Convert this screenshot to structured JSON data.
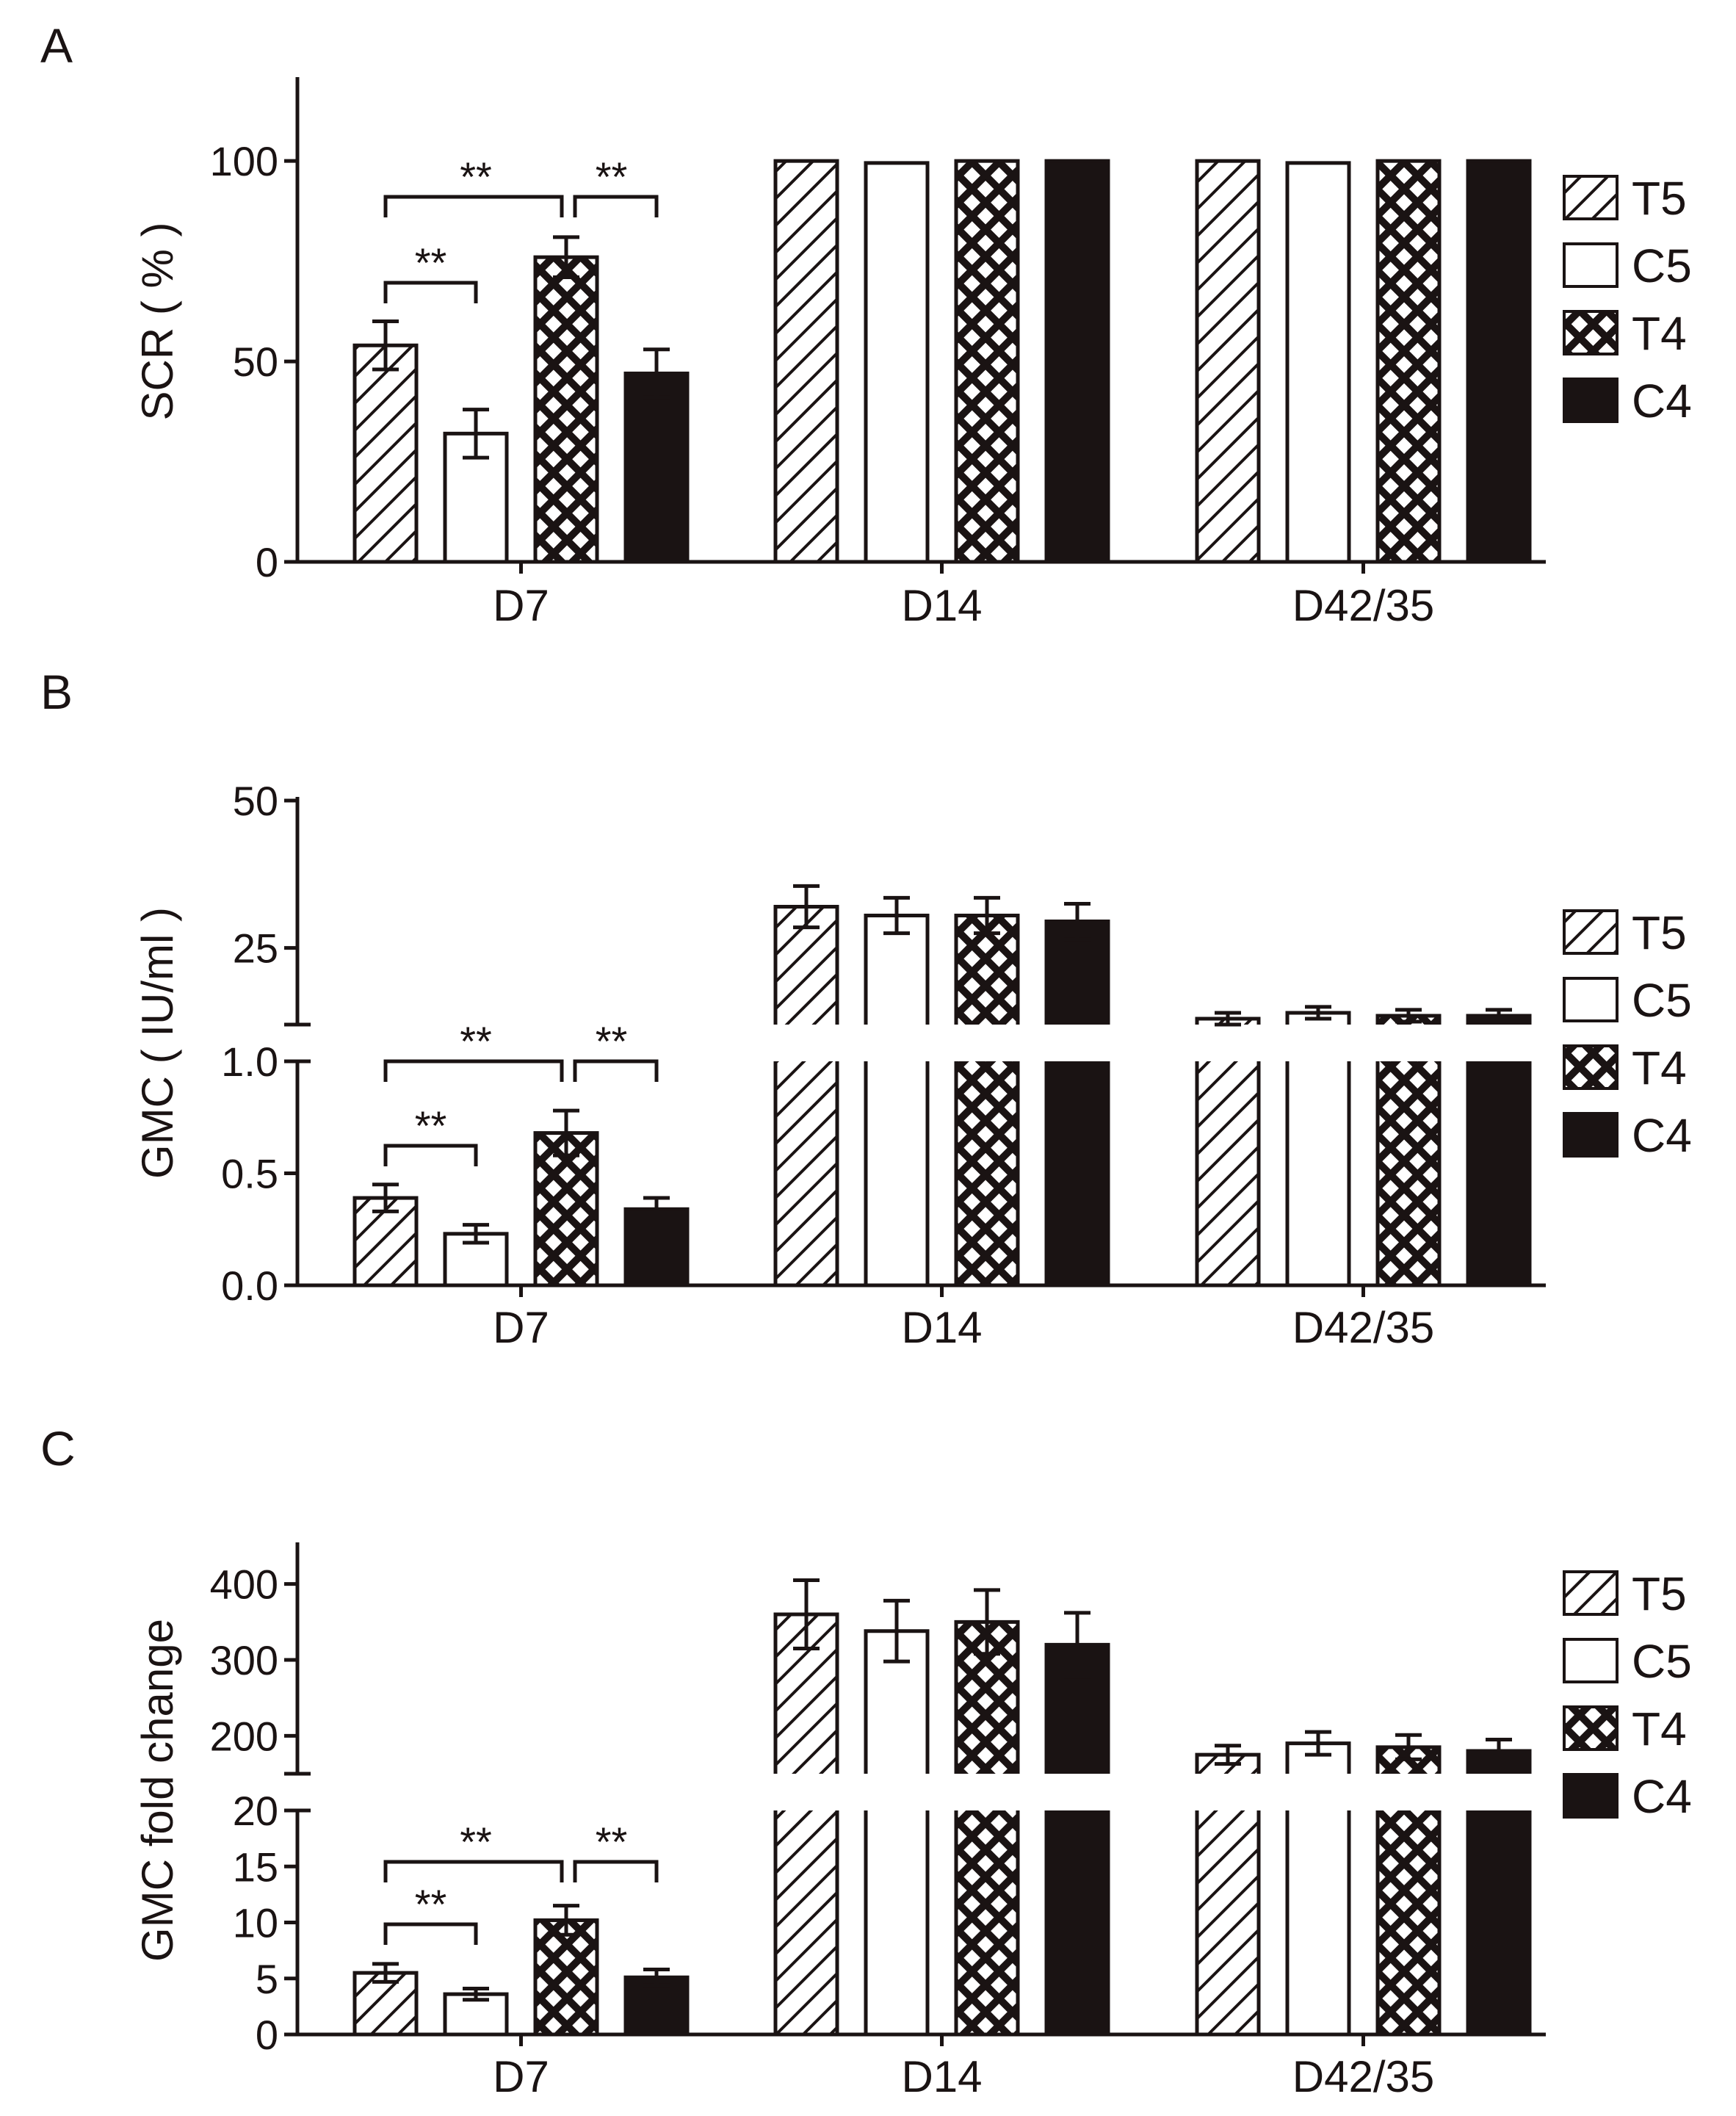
{
  "colors": {
    "ink": "#1a1313",
    "background": "#ffffff"
  },
  "legend": [
    "T5",
    "C5",
    "T4",
    "C4"
  ],
  "categories": [
    "D7",
    "D14",
    "D42/35"
  ],
  "chart_data": [
    {
      "panel": "A",
      "type": "bar",
      "ylabel": "SCR ( % )",
      "categories": [
        "D7",
        "D14",
        "D42/35"
      ],
      "ylim": [
        0,
        120
      ],
      "yticks": [
        0,
        50,
        100
      ],
      "series": [
        {
          "name": "T5",
          "pattern": "diagonal-hatch",
          "values": [
            54,
            100,
            100
          ],
          "errors": [
            6,
            0,
            0
          ]
        },
        {
          "name": "C5",
          "pattern": "open",
          "values": [
            32,
            99.5,
            99.5
          ],
          "errors": [
            6,
            0.5,
            0.5
          ]
        },
        {
          "name": "T4",
          "pattern": "crosshatch",
          "values": [
            76,
            100,
            100
          ],
          "errors": [
            5,
            0,
            0
          ]
        },
        {
          "name": "C4",
          "pattern": "solid",
          "values": [
            47,
            100,
            100
          ],
          "errors": [
            6,
            0,
            0
          ]
        }
      ],
      "significance": [
        {
          "from": 0,
          "to": 2,
          "label": "**",
          "level": 1
        },
        {
          "from": 2,
          "to": 3,
          "label": "**",
          "level": 1
        },
        {
          "from": 0,
          "to": 1,
          "label": "**",
          "level": 0
        }
      ]
    },
    {
      "panel": "B",
      "type": "bar",
      "ylabel": "GMC ( IU/ml )",
      "categories": [
        "D7",
        "D14",
        "D42/35"
      ],
      "broken_axis": true,
      "lower_ylim": [
        0,
        1.0
      ],
      "lower_yticks": [
        "0.0",
        "0.5",
        "1.0"
      ],
      "upper_ylim": [
        12,
        50
      ],
      "upper_yticks": [
        "25",
        "50"
      ],
      "series": [
        {
          "name": "T5",
          "pattern": "diagonal-hatch",
          "values": [
            0.39,
            32,
            13
          ],
          "errors": [
            0.06,
            3.5,
            1
          ]
        },
        {
          "name": "C5",
          "pattern": "open",
          "values": [
            0.23,
            30.5,
            14
          ],
          "errors": [
            0.04,
            3,
            1
          ]
        },
        {
          "name": "T4",
          "pattern": "crosshatch",
          "values": [
            0.68,
            30.5,
            13.5
          ],
          "errors": [
            0.1,
            3,
            1
          ]
        },
        {
          "name": "C4",
          "pattern": "solid",
          "values": [
            0.34,
            29.5,
            13.5
          ],
          "errors": [
            0.05,
            3,
            1
          ]
        }
      ],
      "significance": [
        {
          "from": 0,
          "to": 2,
          "label": "**",
          "level": 1
        },
        {
          "from": 2,
          "to": 3,
          "label": "**",
          "level": 1
        },
        {
          "from": 0,
          "to": 1,
          "label": "**",
          "level": 0
        }
      ]
    },
    {
      "panel": "C",
      "type": "bar",
      "ylabel": "GMC fold change",
      "categories": [
        "D7",
        "D14",
        "D42/35"
      ],
      "broken_axis": true,
      "lower_ylim": [
        0,
        20
      ],
      "lower_yticks": [
        "0",
        "5",
        "10",
        "15",
        "20"
      ],
      "upper_ylim": [
        150,
        450
      ],
      "upper_yticks": [
        "200",
        "300",
        "400"
      ],
      "series": [
        {
          "name": "T5",
          "pattern": "diagonal-hatch",
          "values": [
            5.5,
            360,
            175
          ],
          "errors": [
            0.8,
            45,
            12
          ]
        },
        {
          "name": "C5",
          "pattern": "open",
          "values": [
            3.6,
            338,
            190
          ],
          "errors": [
            0.5,
            40,
            15
          ]
        },
        {
          "name": "T4",
          "pattern": "crosshatch",
          "values": [
            10.2,
            350,
            185
          ],
          "errors": [
            1.3,
            42,
            16
          ]
        },
        {
          "name": "C4",
          "pattern": "solid",
          "values": [
            5.1,
            320,
            180
          ],
          "errors": [
            0.7,
            42,
            15
          ]
        }
      ],
      "significance": [
        {
          "from": 0,
          "to": 2,
          "label": "**",
          "level": 1
        },
        {
          "from": 2,
          "to": 3,
          "label": "**",
          "level": 1
        },
        {
          "from": 0,
          "to": 1,
          "label": "**",
          "level": 0
        }
      ]
    }
  ]
}
